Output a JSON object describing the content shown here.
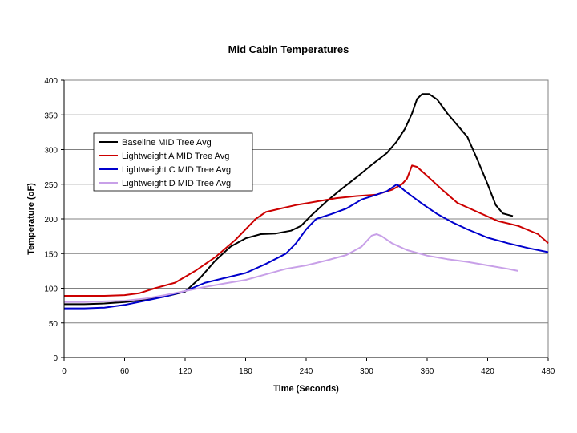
{
  "chart_data": {
    "type": "line",
    "title": "Mid Cabin Temperatures",
    "xlabel": "Time (Seconds)",
    "ylabel": "Temperature (oF)",
    "xlim": [
      0,
      480
    ],
    "ylim": [
      0,
      400
    ],
    "xticks": [
      0,
      60,
      120,
      180,
      240,
      300,
      360,
      420,
      480
    ],
    "yticks": [
      0,
      50,
      100,
      150,
      200,
      250,
      300,
      350,
      400
    ],
    "grid": "horizontal",
    "legend": "upper-left",
    "series": [
      {
        "name": "Baseline MID Tree Avg",
        "color": "#000000",
        "x": [
          0,
          20,
          40,
          60,
          80,
          100,
          120,
          135,
          150,
          165,
          180,
          195,
          210,
          225,
          235,
          245,
          260,
          275,
          290,
          305,
          320,
          330,
          338,
          345,
          350,
          355,
          362,
          370,
          380,
          390,
          400,
          410,
          420,
          428,
          435,
          440,
          445
        ],
        "y": [
          77,
          77,
          78,
          80,
          83,
          88,
          95,
          115,
          140,
          160,
          172,
          178,
          179,
          183,
          190,
          205,
          225,
          243,
          260,
          278,
          295,
          312,
          330,
          352,
          373,
          380,
          380,
          372,
          352,
          335,
          318,
          285,
          250,
          220,
          208,
          206,
          204
        ]
      },
      {
        "name": "Lightweight A MID Tree Avg",
        "color": "#cc0000",
        "x": [
          0,
          20,
          40,
          60,
          75,
          90,
          110,
          130,
          150,
          170,
          180,
          190,
          200,
          215,
          230,
          250,
          270,
          290,
          310,
          325,
          335,
          340,
          345,
          350,
          360,
          375,
          390,
          410,
          430,
          450,
          470,
          480
        ],
        "y": [
          89,
          89,
          89,
          90,
          93,
          100,
          108,
          125,
          145,
          170,
          185,
          200,
          210,
          215,
          220,
          225,
          230,
          233,
          235,
          242,
          250,
          258,
          277,
          275,
          262,
          242,
          223,
          210,
          197,
          190,
          178,
          165
        ]
      },
      {
        "name": "Lightweight C MID Tree Avg",
        "color": "#0000cc",
        "x": [
          0,
          20,
          40,
          60,
          80,
          100,
          120,
          140,
          160,
          180,
          200,
          220,
          230,
          240,
          250,
          265,
          280,
          295,
          310,
          320,
          330,
          340,
          355,
          370,
          385,
          400,
          420,
          440,
          460,
          480
        ],
        "y": [
          71,
          71,
          72,
          76,
          82,
          88,
          96,
          108,
          115,
          122,
          135,
          150,
          165,
          185,
          200,
          207,
          215,
          228,
          235,
          240,
          250,
          238,
          222,
          207,
          195,
          185,
          173,
          165,
          158,
          152
        ]
      },
      {
        "name": "Lightweight D MID Tree Avg",
        "color": "#c8a0e8",
        "x": [
          0,
          20,
          40,
          60,
          80,
          100,
          120,
          140,
          160,
          180,
          200,
          220,
          240,
          260,
          280,
          295,
          305,
          310,
          315,
          325,
          340,
          360,
          380,
          400,
          420,
          440,
          450
        ],
        "y": [
          80,
          80,
          81,
          82,
          85,
          90,
          96,
          102,
          107,
          112,
          120,
          128,
          133,
          140,
          148,
          160,
          176,
          178,
          175,
          165,
          155,
          147,
          142,
          138,
          133,
          128,
          125
        ]
      }
    ]
  }
}
